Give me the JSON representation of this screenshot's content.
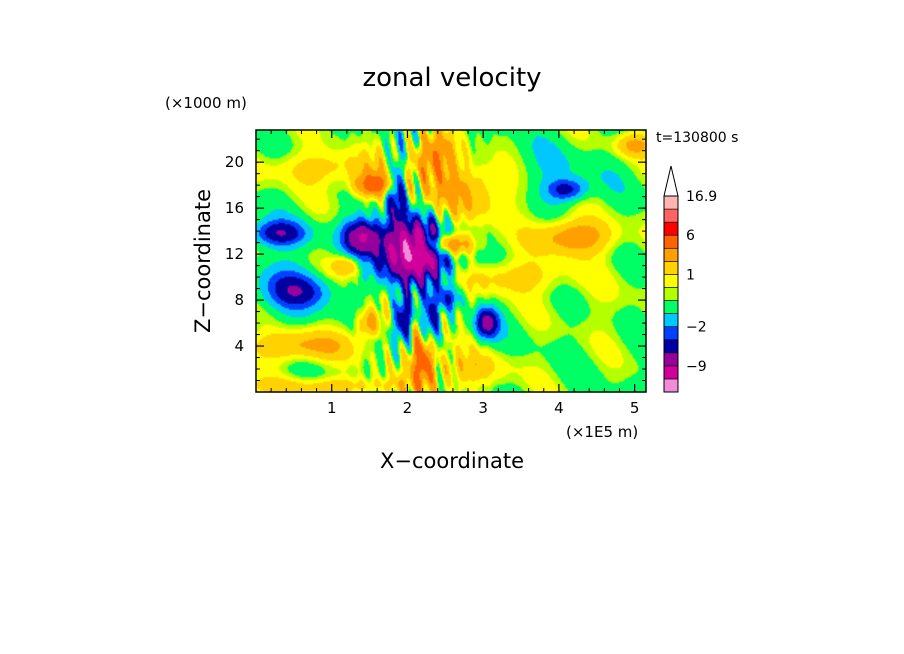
{
  "chart_data": {
    "type": "heatmap",
    "title": "zonal velocity",
    "xlabel": "X−coordinate",
    "ylabel": "Z−coordinate",
    "x_unit": "(×1E5 m)",
    "y_unit": "(×1000 m)",
    "time_label": "t=130800 s",
    "xlim": [
      0,
      5.15
    ],
    "ylim": [
      0,
      22.8
    ],
    "x_ticks": [
      1,
      2,
      3,
      4,
      5
    ],
    "y_ticks": [
      4,
      8,
      12,
      16,
      20
    ],
    "colorbar": {
      "labels": [
        {
          "text": "16.9",
          "value": 16.9
        },
        {
          "text": "6",
          "value": 6
        },
        {
          "text": "1",
          "value": 1
        },
        {
          "text": "−2",
          "value": -2
        },
        {
          "text": "−9",
          "value": -9
        }
      ],
      "levels": [
        {
          "color": "#f08cd8",
          "value": -12
        },
        {
          "color": "#d2009b",
          "value": -9
        },
        {
          "color": "#96009b",
          "value": -6
        },
        {
          "color": "#0000a0",
          "value": -4
        },
        {
          "color": "#0040ff",
          "value": -2.5
        },
        {
          "color": "#00c8ff",
          "value": -1.5
        },
        {
          "color": "#00ff64",
          "value": 0
        },
        {
          "color": "#b4ff00",
          "value": 0.5
        },
        {
          "color": "#ffff00",
          "value": 1
        },
        {
          "color": "#ffd200",
          "value": 2
        },
        {
          "color": "#ffa000",
          "value": 3.5
        },
        {
          "color": "#ff6400",
          "value": 6
        },
        {
          "color": "#ff0000",
          "value": 9
        },
        {
          "color": "#ff6464",
          "value": 12
        },
        {
          "color": "#ffb4b4",
          "value": 16.9
        }
      ]
    },
    "field_features": [
      {
        "x": 2.1,
        "z": 12.2,
        "u": -12,
        "sx": 0.45,
        "sz": 2.4
      },
      {
        "x": 1.4,
        "z": 13.5,
        "u": -7,
        "sx": 0.25,
        "sz": 1.5
      },
      {
        "x": 0.3,
        "z": 13.8,
        "u": -5,
        "sx": 0.35,
        "sz": 1.1
      },
      {
        "x": 3.05,
        "z": 6.0,
        "u": -6,
        "sx": 0.15,
        "sz": 1.3
      },
      {
        "x": 4.1,
        "z": 17.6,
        "u": -4,
        "sx": 0.25,
        "sz": 0.9
      },
      {
        "x": 1.95,
        "z": 6.5,
        "u": -6,
        "sx": 0.12,
        "sz": 2.0
      },
      {
        "x": 2.3,
        "z": 6.0,
        "u": -5,
        "sx": 0.1,
        "sz": 2.0
      },
      {
        "x": 0.6,
        "z": 8.8,
        "u": -3,
        "sx": 0.4,
        "sz": 1.4
      },
      {
        "x": 1.85,
        "z": 17.2,
        "u": -5,
        "sx": 0.12,
        "sz": 3.0
      },
      {
        "x": 2.55,
        "z": 8.2,
        "u": -3,
        "sx": 0.15,
        "sz": 1.0
      },
      {
        "x": 2.5,
        "z": 12.8,
        "u": 7,
        "sx": 0.35,
        "sz": 1.0
      },
      {
        "x": 1.55,
        "z": 18.0,
        "u": 6,
        "sx": 0.25,
        "sz": 1.0
      },
      {
        "x": 2.2,
        "z": 3.0,
        "u": 6,
        "sx": 0.15,
        "sz": 2.5
      },
      {
        "x": 1.5,
        "z": 6.0,
        "u": 4,
        "sx": 0.15,
        "sz": 1.2
      },
      {
        "x": 1.2,
        "z": 11.0,
        "u": 3,
        "sx": 0.2,
        "sz": 1.0
      },
      {
        "x": 2.8,
        "z": 17.5,
        "u": 3,
        "sx": 0.6,
        "sz": 2.5
      },
      {
        "x": 4.2,
        "z": 13.5,
        "u": 4,
        "sx": 0.5,
        "sz": 1.5
      },
      {
        "x": 3.4,
        "z": 10.0,
        "u": 2,
        "sx": 0.7,
        "sz": 1.5
      },
      {
        "x": 0.6,
        "z": 4.0,
        "u": 3,
        "sx": 0.7,
        "sz": 1.3
      },
      {
        "x": 2.7,
        "z": 2.0,
        "u": 2,
        "sx": 0.6,
        "sz": 1.5
      },
      {
        "x": 1.0,
        "z": 19.5,
        "u": 2,
        "sx": 0.8,
        "sz": 1.5
      },
      {
        "x": 1.0,
        "z": 0.5,
        "u": 2,
        "sx": 1.2,
        "sz": 0.8
      },
      {
        "x": 2.35,
        "z": 20.5,
        "u": 4,
        "sx": 0.3,
        "sz": 2.0
      },
      {
        "x": 4.6,
        "z": 8.0,
        "u": 0.3,
        "sx": 0.6,
        "sz": 3.0
      },
      {
        "x": 3.8,
        "z": 19.0,
        "u": -1,
        "sx": 0.8,
        "sz": 2.5
      },
      {
        "x": 0.4,
        "z": 9.0,
        "u": -2,
        "sx": 0.4,
        "sz": 2.5
      },
      {
        "x": 5.0,
        "z": 21.5,
        "u": 3,
        "sx": 0.25,
        "sz": 1.0
      }
    ]
  }
}
